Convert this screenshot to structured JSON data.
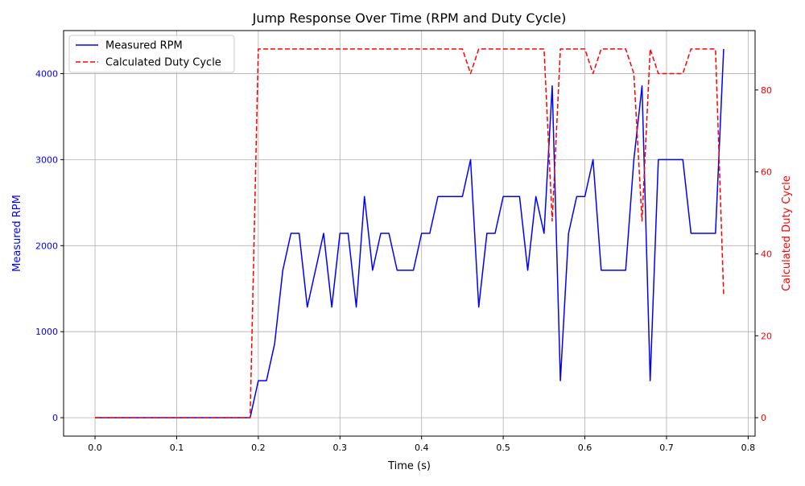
{
  "chart_data": {
    "type": "line",
    "title": "Jump Response Over Time (RPM and Duty Cycle)",
    "xlabel": "Time (s)",
    "ylabel_left": "Measured RPM",
    "ylabel_right": "Calculated Duty Cycle",
    "xlim": [
      -0.0385,
      0.8085
    ],
    "ylim_left": [
      -214,
      4500
    ],
    "ylim_right": [
      -4.5,
      94.5
    ],
    "x_ticks": [
      0.0,
      0.1,
      0.2,
      0.3,
      0.4,
      0.5,
      0.6,
      0.7,
      0.8
    ],
    "x_tick_labels": [
      "0.0",
      "0.1",
      "0.2",
      "0.3",
      "0.4",
      "0.5",
      "0.6",
      "0.7",
      "0.8"
    ],
    "y_left_ticks": [
      0,
      1000,
      2000,
      3000,
      4000
    ],
    "y_left_tick_labels": [
      "0",
      "1000",
      "2000",
      "3000",
      "4000"
    ],
    "y_right_ticks": [
      0,
      20,
      40,
      60,
      80
    ],
    "y_right_tick_labels": [
      "0",
      "20",
      "40",
      "60",
      "80"
    ],
    "grid": true,
    "legend_position": "upper-left",
    "x": [
      0.0,
      0.01,
      0.02,
      0.03,
      0.04,
      0.05,
      0.06,
      0.07,
      0.08,
      0.09,
      0.1,
      0.11,
      0.12,
      0.13,
      0.14,
      0.15,
      0.16,
      0.17,
      0.18,
      0.19,
      0.2,
      0.21,
      0.22,
      0.23,
      0.24,
      0.25,
      0.26,
      0.27,
      0.28,
      0.29,
      0.3,
      0.31,
      0.32,
      0.33,
      0.34,
      0.35,
      0.36,
      0.37,
      0.38,
      0.39,
      0.4,
      0.41,
      0.42,
      0.43,
      0.44,
      0.45,
      0.46,
      0.47,
      0.48,
      0.49,
      0.5,
      0.51,
      0.52,
      0.53,
      0.54,
      0.55,
      0.56,
      0.57,
      0.58,
      0.59,
      0.6,
      0.61,
      0.62,
      0.63,
      0.64,
      0.65,
      0.66,
      0.67,
      0.68,
      0.69,
      0.7,
      0.71,
      0.72,
      0.73,
      0.74,
      0.75,
      0.76,
      0.77
    ],
    "series": [
      {
        "name": "Measured RPM",
        "axis": "left",
        "color": "#0000ff",
        "style": "solid",
        "values": [
          0,
          0,
          0,
          0,
          0,
          0,
          0,
          0,
          0,
          0,
          0,
          0,
          0,
          0,
          0,
          0,
          0,
          0,
          0,
          0,
          430,
          430,
          860,
          1714,
          2143,
          2143,
          1286,
          1714,
          2143,
          1286,
          2143,
          2143,
          1286,
          2571,
          1714,
          2143,
          2143,
          1714,
          1714,
          1714,
          2143,
          2143,
          2571,
          2571,
          2571,
          2571,
          3000,
          1286,
          2143,
          2143,
          2571,
          2571,
          2571,
          1714,
          2571,
          2143,
          3857,
          430,
          2143,
          2571,
          2571,
          3000,
          1714,
          1714,
          1714,
          1714,
          3000,
          3857,
          430,
          3000,
          3000,
          3000,
          3000,
          2143,
          2143,
          2143,
          2143,
          4286
        ]
      },
      {
        "name": "Calculated Duty Cycle",
        "axis": "right",
        "color": "#ff0000",
        "style": "dashed",
        "values": [
          0,
          0,
          0,
          0,
          0,
          0,
          0,
          0,
          0,
          0,
          0,
          0,
          0,
          0,
          0,
          0,
          0,
          0,
          0,
          0,
          90,
          90,
          90,
          90,
          90,
          90,
          90,
          90,
          90,
          90,
          90,
          90,
          90,
          90,
          90,
          90,
          90,
          90,
          90,
          90,
          90,
          90,
          90,
          90,
          90,
          90,
          84,
          90,
          90,
          90,
          90,
          90,
          90,
          90,
          90,
          90,
          48,
          90,
          90,
          90,
          90,
          84,
          90,
          90,
          90,
          90,
          84,
          48,
          90,
          84,
          84,
          84,
          84,
          90,
          90,
          90,
          90,
          30
        ]
      }
    ],
    "colors": {
      "left_axis": "#0000ff",
      "right_axis": "#ff0000",
      "grid": "#b0b0b0"
    }
  }
}
